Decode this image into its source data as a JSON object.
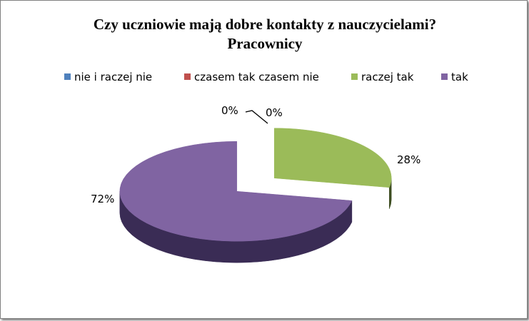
{
  "chart_data": {
    "type": "pie",
    "title": "Czy uczniowie mają dobre kontakty z nauczycielami?",
    "subtitle": "Pracownicy",
    "legend_position": "top",
    "categories": [
      "nie i raczej nie",
      "czasem tak czasem nie",
      "raczej tak",
      "tak"
    ],
    "values": [
      0,
      0,
      28,
      72
    ],
    "data_labels": [
      "0%",
      "0%",
      "28%",
      "72%"
    ],
    "colors": [
      "#4F81BD",
      "#C0504D",
      "#9BBB59",
      "#8064A2"
    ],
    "side_colors": [
      "#2C4D75",
      "#772C2A",
      "#3E4E22",
      "#3A2C55"
    ],
    "exploded": true,
    "three_d": true
  }
}
